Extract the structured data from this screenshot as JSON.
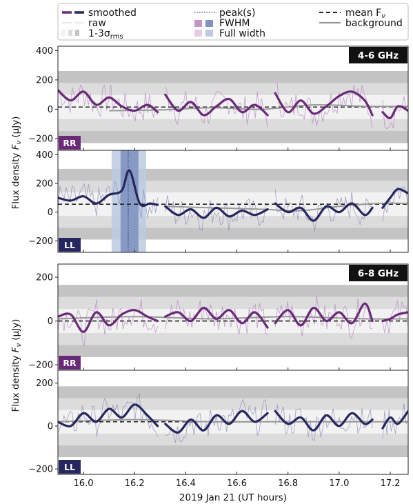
{
  "legend": {
    "smoothed": "smoothed",
    "raw": "raw",
    "sigma_prefix": "1-3σ",
    "sigma_sub": "rms",
    "peak": "peak(s)",
    "fwhm": "FWHM",
    "fullwidth": "Full width",
    "mean_prefix": "mean F",
    "mean_sub": "ν",
    "background": "background"
  },
  "colors": {
    "rr_smoothed": "#6a2a78",
    "rr_raw": "#b58ac1",
    "ll_smoothed": "#26275f",
    "ll_raw": "#8c8fb6",
    "band_1sigma": "#f2f2f2",
    "band_2sigma": "#dcdcdc",
    "band_3sigma": "#c4c4c4",
    "fwhm": "#7f93bf",
    "fullwidth": "#bccbe3",
    "mean": "#222222",
    "background": "#999999"
  },
  "ylabel_text": "Flux density",
  "ylabel_var": "F",
  "ylabel_sub": "ν",
  "ylabel_unit": "(μJy)",
  "xlabel": "2019 Jan 21   (UT hours)",
  "chart_data": [
    {
      "type": "line",
      "band": "4-6 GHz",
      "pol": "RR",
      "ylim": [
        -280,
        430
      ],
      "yticks": [
        -200,
        0,
        200,
        400
      ],
      "xlim": [
        15.9,
        17.27
      ],
      "xticks": [
        16.0,
        16.2,
        16.4,
        16.6,
        16.8,
        17.0,
        17.2
      ],
      "rms": 82,
      "mean": 15,
      "segments": [
        {
          "x": [
            15.9,
            15.95,
            16.0,
            16.05,
            16.1,
            16.15,
            16.2,
            16.25,
            16.29
          ],
          "y": [
            130,
            60,
            120,
            30,
            80,
            20,
            -10,
            30,
            -20
          ]
        },
        {
          "x": [
            16.32,
            16.37,
            16.42,
            16.47,
            16.52,
            16.57,
            16.62,
            16.67,
            16.72
          ],
          "y": [
            100,
            -10,
            50,
            -40,
            20,
            70,
            -20,
            30,
            -40
          ]
        },
        {
          "x": [
            16.75,
            16.8,
            16.85,
            16.9,
            16.95,
            17.0,
            17.05,
            17.1,
            17.13
          ],
          "y": [
            110,
            -20,
            60,
            -30,
            20,
            90,
            120,
            60,
            -40
          ]
        },
        {
          "x": [
            17.17,
            17.2,
            17.23,
            17.27
          ],
          "y": [
            -20,
            -60,
            20,
            -10
          ]
        }
      ],
      "background_curve": {
        "x": [
          16.1,
          16.3,
          16.5,
          16.7,
          16.9,
          17.1,
          17.27
        ],
        "y": [
          -10,
          -5,
          10,
          0,
          30,
          20,
          20
        ]
      }
    },
    {
      "type": "line",
      "band": "4-6 GHz",
      "pol": "LL",
      "ylim": [
        -280,
        430
      ],
      "yticks": [
        -200,
        0,
        200,
        400
      ],
      "xlim": [
        15.9,
        17.27
      ],
      "xticks": [
        16.0,
        16.2,
        16.4,
        16.6,
        16.8,
        17.0,
        17.2
      ],
      "rms": 82,
      "mean": 55,
      "peak_x": 16.175,
      "fwhm_range": [
        16.145,
        16.215
      ],
      "fullwidth_range": [
        16.11,
        16.245
      ],
      "segments": [
        {
          "x": [
            15.9,
            15.95,
            16.0,
            16.05,
            16.1,
            16.15,
            16.18,
            16.22,
            16.26,
            16.29
          ],
          "y": [
            100,
            80,
            110,
            60,
            120,
            150,
            290,
            60,
            60,
            50
          ]
        },
        {
          "x": [
            16.32,
            16.37,
            16.42,
            16.47,
            16.52,
            16.57,
            16.62,
            16.67,
            16.72
          ],
          "y": [
            40,
            -20,
            20,
            -40,
            30,
            -30,
            10,
            -20,
            20
          ]
        },
        {
          "x": [
            16.75,
            16.8,
            16.85,
            16.9,
            16.95,
            17.0,
            17.05,
            17.1,
            17.13
          ],
          "y": [
            60,
            0,
            30,
            -60,
            40,
            0,
            60,
            -20,
            30
          ]
        },
        {
          "x": [
            17.17,
            17.2,
            17.23,
            17.27
          ],
          "y": [
            30,
            100,
            160,
            130
          ]
        }
      ],
      "background_curve": {
        "x": [
          16.32,
          16.5,
          16.7,
          16.85,
          17.0,
          17.15,
          17.27
        ],
        "y": [
          40,
          30,
          20,
          10,
          40,
          60,
          60
        ]
      }
    },
    {
      "type": "line",
      "band": "6-8 GHz",
      "pol": "RR",
      "ylim": [
        -225,
        260
      ],
      "yticks": [
        -200,
        0,
        200
      ],
      "xlim": [
        15.9,
        17.27
      ],
      "xticks": [
        16.0,
        16.2,
        16.4,
        16.6,
        16.8,
        17.0,
        17.2
      ],
      "rms": 55,
      "mean": 0,
      "segments": [
        {
          "x": [
            15.9,
            15.95,
            16.0,
            16.05,
            16.1,
            16.15,
            16.2,
            16.25,
            16.29
          ],
          "y": [
            20,
            30,
            -50,
            40,
            -20,
            30,
            50,
            20,
            0
          ]
        },
        {
          "x": [
            16.32,
            16.37,
            16.42,
            16.47,
            16.52,
            16.57,
            16.62,
            16.67,
            16.72
          ],
          "y": [
            20,
            40,
            0,
            60,
            10,
            50,
            -10,
            40,
            -30
          ]
        },
        {
          "x": [
            16.75,
            16.8,
            16.85,
            16.9,
            16.95,
            17.0,
            17.05,
            17.1,
            17.13
          ],
          "y": [
            -10,
            50,
            -20,
            60,
            0,
            40,
            -10,
            80,
            0
          ]
        },
        {
          "x": [
            17.17,
            17.2,
            17.23,
            17.27
          ],
          "y": [
            0,
            10,
            30,
            40
          ]
        }
      ],
      "background_curve": {
        "x": [
          15.9,
          16.2,
          16.5,
          16.8,
          17.1,
          17.27
        ],
        "y": [
          10,
          20,
          10,
          20,
          10,
          10
        ]
      }
    },
    {
      "type": "line",
      "band": "6-8 GHz",
      "pol": "LL",
      "ylim": [
        -225,
        260
      ],
      "yticks": [
        -200,
        0,
        200
      ],
      "xlim": [
        15.9,
        17.27
      ],
      "xticks": [
        16.0,
        16.2,
        16.4,
        16.6,
        16.8,
        17.0,
        17.2
      ],
      "rms": 55,
      "mean": 20,
      "segments": [
        {
          "x": [
            15.9,
            15.95,
            16.0,
            16.05,
            16.1,
            16.15,
            16.2,
            16.25,
            16.29
          ],
          "y": [
            20,
            0,
            60,
            20,
            80,
            40,
            100,
            50,
            0
          ]
        },
        {
          "x": [
            16.32,
            16.37,
            16.42,
            16.47,
            16.52,
            16.57,
            16.62,
            16.67,
            16.72
          ],
          "y": [
            10,
            -30,
            30,
            -20,
            50,
            10,
            70,
            20,
            60
          ]
        },
        {
          "x": [
            16.75,
            16.8,
            16.85,
            16.9,
            16.95,
            17.0,
            17.05,
            17.1,
            17.13
          ],
          "y": [
            70,
            10,
            40,
            -20,
            50,
            0,
            60,
            10,
            30
          ]
        },
        {
          "x": [
            17.17,
            17.2,
            17.23,
            17.27
          ],
          "y": [
            -10,
            40,
            10,
            70
          ]
        }
      ],
      "background_curve": {
        "x": [
          15.9,
          16.2,
          16.5,
          16.8,
          17.1,
          17.27
        ],
        "y": [
          20,
          30,
          20,
          20,
          20,
          20
        ]
      }
    }
  ]
}
